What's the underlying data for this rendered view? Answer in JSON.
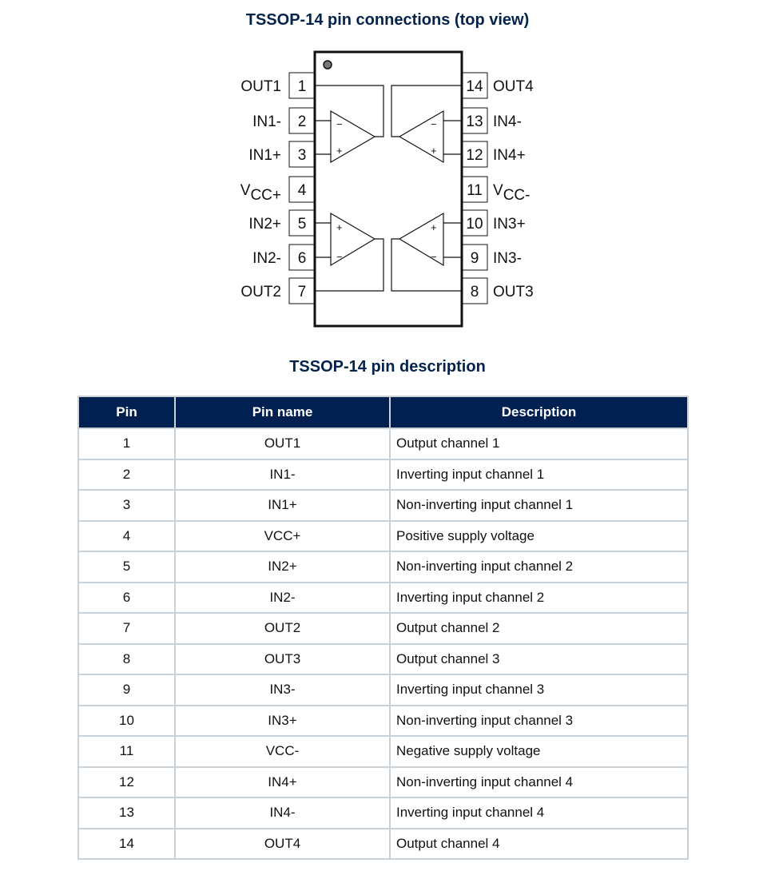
{
  "diagram": {
    "title": "TSSOP-14 pin connections (top view)",
    "left_pins": [
      {
        "num": "1",
        "label": "OUT1"
      },
      {
        "num": "2",
        "label": "IN1-"
      },
      {
        "num": "3",
        "label": "IN1+"
      },
      {
        "num": "4",
        "label": "VCC+"
      },
      {
        "num": "5",
        "label": "IN2+"
      },
      {
        "num": "6",
        "label": "IN2-"
      },
      {
        "num": "7",
        "label": "OUT2"
      }
    ],
    "right_pins": [
      {
        "num": "14",
        "label": "OUT4"
      },
      {
        "num": "13",
        "label": "IN4-"
      },
      {
        "num": "12",
        "label": "IN4+"
      },
      {
        "num": "11",
        "label": "VCC-"
      },
      {
        "num": "10",
        "label": "IN3+"
      },
      {
        "num": "9",
        "label": "IN3-"
      },
      {
        "num": "8",
        "label": "OUT3"
      }
    ]
  },
  "table": {
    "title": "TSSOP-14 pin description",
    "headers": [
      "Pin",
      "Pin name",
      "Description"
    ],
    "header_color": "#002052",
    "rows": [
      [
        "1",
        "OUT1",
        "Output channel 1"
      ],
      [
        "2",
        "IN1-",
        "Inverting input channel 1"
      ],
      [
        "3",
        "IN1+",
        "Non-inverting input channel 1"
      ],
      [
        "4",
        "VCC+",
        "Positive supply voltage"
      ],
      [
        "5",
        "IN2+",
        "Non-inverting input channel 2"
      ],
      [
        "6",
        "IN2-",
        "Inverting input channel 2"
      ],
      [
        "7",
        "OUT2",
        "Output channel 2"
      ],
      [
        "8",
        "OUT3",
        "Output channel 3"
      ],
      [
        "9",
        "IN3-",
        "Inverting input channel 3"
      ],
      [
        "10",
        "IN3+",
        "Non-inverting input channel 3"
      ],
      [
        "11",
        "VCC-",
        "Negative supply voltage"
      ],
      [
        "12",
        "IN4+",
        "Non-inverting input channel 4"
      ],
      [
        "13",
        "IN4-",
        "Inverting input channel 4"
      ],
      [
        "14",
        "OUT4",
        "Output channel 4"
      ]
    ]
  }
}
